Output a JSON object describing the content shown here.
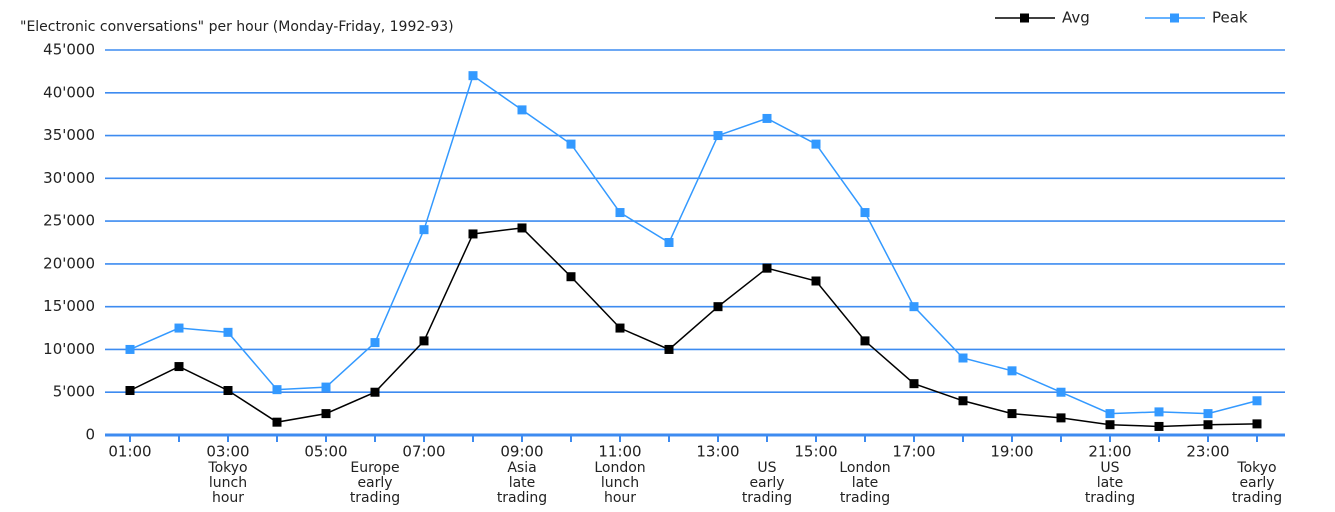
{
  "chart_data": {
    "type": "line",
    "title": "\"Electronic conversations\" per hour (Monday-Friday, 1992-93)",
    "categories": [
      "01:00",
      null,
      "03:00",
      null,
      "05:00",
      null,
      "07:00",
      null,
      "09:00",
      null,
      "11:00",
      null,
      "13:00",
      null,
      "15:00",
      null,
      "17:00",
      null,
      "19:00",
      null,
      "21:00",
      null,
      "23:00",
      null
    ],
    "category_notes": [
      null,
      null,
      [
        "Tokyo",
        "lunch",
        "hour"
      ],
      null,
      null,
      [
        "Europe",
        "early",
        "trading"
      ],
      null,
      null,
      [
        "Asia",
        "late",
        "trading"
      ],
      null,
      [
        "London",
        "lunch",
        "hour"
      ],
      null,
      null,
      [
        "US",
        "early",
        "trading"
      ],
      null,
      [
        "London",
        "late",
        "trading"
      ],
      null,
      null,
      null,
      null,
      [
        "US",
        "late",
        "trading"
      ],
      null,
      null,
      [
        "Tokyo",
        "early",
        "trading"
      ]
    ],
    "series": [
      {
        "name": "Avg",
        "color": "#000000",
        "values": [
          5200,
          8000,
          5200,
          1500,
          2500,
          5000,
          11000,
          23500,
          24200,
          18500,
          12500,
          10000,
          15000,
          19500,
          18000,
          11000,
          6000,
          4000,
          2500,
          2000,
          1200,
          1000,
          1200,
          1300
        ]
      },
      {
        "name": "Peak",
        "color": "#3399ff",
        "values": [
          10000,
          12500,
          12000,
          5300,
          5600,
          10800,
          24000,
          42000,
          38000,
          34000,
          26000,
          22500,
          35000,
          37000,
          34000,
          26000,
          15000,
          9000,
          7500,
          5000,
          2500,
          2700,
          2500,
          4000
        ]
      }
    ],
    "ylim": [
      0,
      45000
    ],
    "yticks": [
      0,
      {
        "value": 5000,
        "label": "5'000"
      },
      {
        "value": 10000,
        "label": "10'000"
      },
      {
        "value": 15000,
        "label": "15'000"
      },
      {
        "value": 20000,
        "label": "20'000"
      },
      {
        "value": 25000,
        "label": "25'000"
      },
      {
        "value": 30000,
        "label": "30'000"
      },
      {
        "value": 35000,
        "label": "35'000"
      },
      {
        "value": 40000,
        "label": "40'000"
      },
      {
        "value": 45000,
        "label": "45'000"
      }
    ],
    "grid": true,
    "grid_color": "#3d8bf0",
    "legend": "top-right"
  }
}
